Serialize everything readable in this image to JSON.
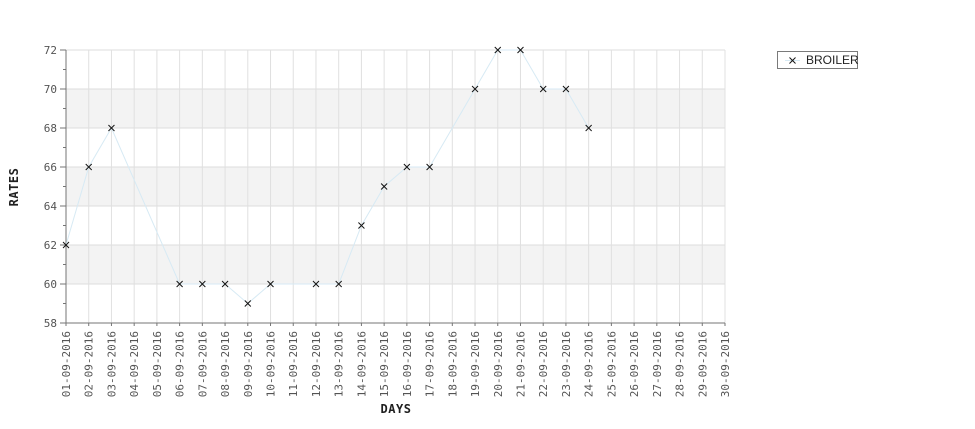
{
  "chart_data": {
    "type": "line",
    "title": "",
    "xlabel": "DAYS",
    "ylabel": "RATES",
    "ylim": [
      58,
      72
    ],
    "y_tick_step": 2,
    "y_minor_tick_step": 1,
    "grid": true,
    "legend_position": "top-right",
    "categories": [
      "01-09-2016",
      "02-09-2016",
      "03-09-2016",
      "04-09-2016",
      "05-09-2016",
      "06-09-2016",
      "07-09-2016",
      "08-09-2016",
      "09-09-2016",
      "10-09-2016",
      "11-09-2016",
      "12-09-2016",
      "13-09-2016",
      "14-09-2016",
      "15-09-2016",
      "16-09-2016",
      "17-09-2016",
      "18-09-2016",
      "19-09-2016",
      "20-09-2016",
      "21-09-2016",
      "22-09-2016",
      "23-09-2016",
      "24-09-2016",
      "25-09-2016",
      "26-09-2016",
      "27-09-2016",
      "28-09-2016",
      "29-09-2016",
      "30-09-2016"
    ],
    "series": [
      {
        "name": "BROILER",
        "marker": "x",
        "line_color": "#d7eaf4",
        "marker_color": "#141414",
        "points": [
          {
            "x": "01-09-2016",
            "y": 62
          },
          {
            "x": "02-09-2016",
            "y": 66
          },
          {
            "x": "03-09-2016",
            "y": 68
          },
          {
            "x": "06-09-2016",
            "y": 60
          },
          {
            "x": "07-09-2016",
            "y": 60
          },
          {
            "x": "08-09-2016",
            "y": 60
          },
          {
            "x": "09-09-2016",
            "y": 59
          },
          {
            "x": "10-09-2016",
            "y": 60
          },
          {
            "x": "12-09-2016",
            "y": 60
          },
          {
            "x": "13-09-2016",
            "y": 60
          },
          {
            "x": "14-09-2016",
            "y": 63
          },
          {
            "x": "15-09-2016",
            "y": 65
          },
          {
            "x": "16-09-2016",
            "y": 66
          },
          {
            "x": "17-09-2016",
            "y": 66
          },
          {
            "x": "19-09-2016",
            "y": 70
          },
          {
            "x": "20-09-2016",
            "y": 72
          },
          {
            "x": "21-09-2016",
            "y": 72
          },
          {
            "x": "22-09-2016",
            "y": 70
          },
          {
            "x": "23-09-2016",
            "y": 70
          },
          {
            "x": "24-09-2016",
            "y": 68
          }
        ]
      }
    ],
    "colors": {
      "band": "#f3f3f3",
      "grid_h": "#dcdcdc",
      "grid_v": "#e0e0e0",
      "axis": "#757575",
      "tick_label": "#545454",
      "axis_title": "#1f1f1f",
      "background": "#ffffff"
    }
  }
}
